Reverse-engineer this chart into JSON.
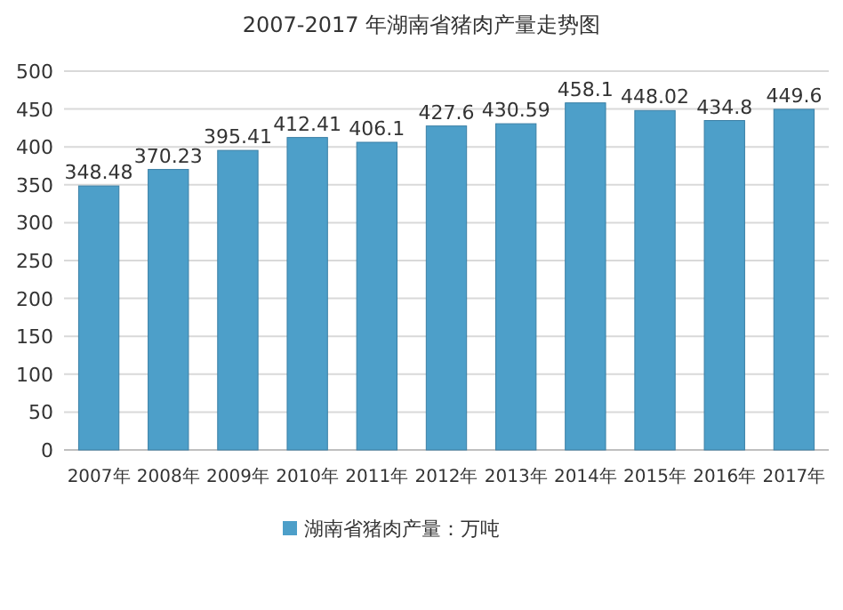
{
  "chart_data": {
    "type": "bar",
    "title": "2007-2017 年湖南省猪肉产量走势图",
    "categories": [
      "2007年",
      "2008年",
      "2009年",
      "2010年",
      "2011年",
      "2012年",
      "2013年",
      "2014年",
      "2015年",
      "2016年",
      "2017年"
    ],
    "series": [
      {
        "name": "湖南省猪肉产量：万吨",
        "color": "#4d9fc9",
        "values": [
          348.48,
          370.23,
          395.41,
          412.41,
          406.1,
          427.6,
          430.59,
          458.1,
          448.02,
          434.8,
          449.6
        ]
      }
    ],
    "ylim": [
      0,
      500
    ],
    "yticks": [
      0,
      50,
      100,
      150,
      200,
      250,
      300,
      350,
      400,
      450,
      500
    ],
    "grid": "y",
    "legend": "bottom",
    "data_labels": true
  }
}
